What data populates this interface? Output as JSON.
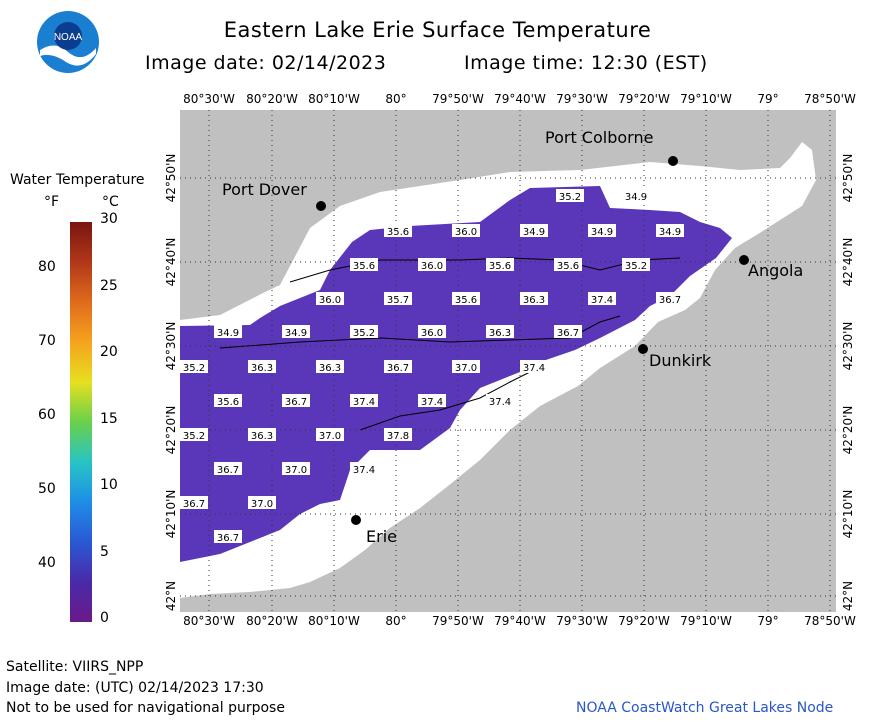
{
  "header": {
    "title": "Eastern Lake Erie Surface Temperature",
    "image_date": "Image date: 02/14/2023",
    "image_time": "Image time: 12:30 (EST)"
  },
  "logo": {
    "text": "NOAA",
    "icon": "noaa-logo-icon"
  },
  "colorbar": {
    "title": "Water Temperature",
    "unit_f": "°F",
    "unit_c": "°C",
    "f_ticks": [
      "80",
      "70",
      "60",
      "50",
      "40"
    ],
    "c_ticks": [
      "30",
      "25",
      "20",
      "15",
      "10",
      "5",
      "0"
    ]
  },
  "axes": {
    "lon_labels": [
      "80°30'W",
      "80°20'W",
      "80°10'W",
      "80°",
      "79°50'W",
      "79°40'W",
      "79°30'W",
      "79°20'W",
      "79°10'W",
      "79°",
      "78°50'W"
    ],
    "lat_labels": [
      "42°50'N",
      "42°40'N",
      "42°30'N",
      "42°20'N",
      "42°10'N",
      "42°N"
    ]
  },
  "cities": {
    "port_colborne": "Port Colborne",
    "port_dover": "Port Dover",
    "angola": "Angola",
    "dunkirk": "Dunkirk",
    "erie": "Erie"
  },
  "temperature_labels": [
    "35.2",
    "34.9",
    "35.6",
    "36.0",
    "34.9",
    "34.9",
    "34.9",
    "35.6",
    "36.0",
    "35.6",
    "35.6",
    "35.2",
    "36.0",
    "35.7",
    "35.6",
    "36.3",
    "37.4",
    "36.7",
    "34.9",
    "34.9",
    "35.2",
    "36.0",
    "36.3",
    "36.7",
    "35.2",
    "36.3",
    "36.3",
    "36.7",
    "37.0",
    "37.4",
    "35.6",
    "36.7",
    "37.4",
    "37.4",
    "37.4",
    "35.2",
    "36.3",
    "37.0",
    "37.8",
    "36.7",
    "37.0",
    "37.4",
    "36.7",
    "37.0",
    "36.7"
  ],
  "footer": {
    "satellite": "Satellite: VIIRS_NPP",
    "utc_date": "Image date: (UTC) 02/14/2023  17:30",
    "disclaimer": "Not to be used for navigational purpose",
    "credit": "NOAA CoastWatch Great Lakes Node"
  },
  "colors": {
    "land": "#c0c0c0",
    "ice": "#ffffff",
    "water": "#5a36b8",
    "credit": "#2a56c6"
  }
}
